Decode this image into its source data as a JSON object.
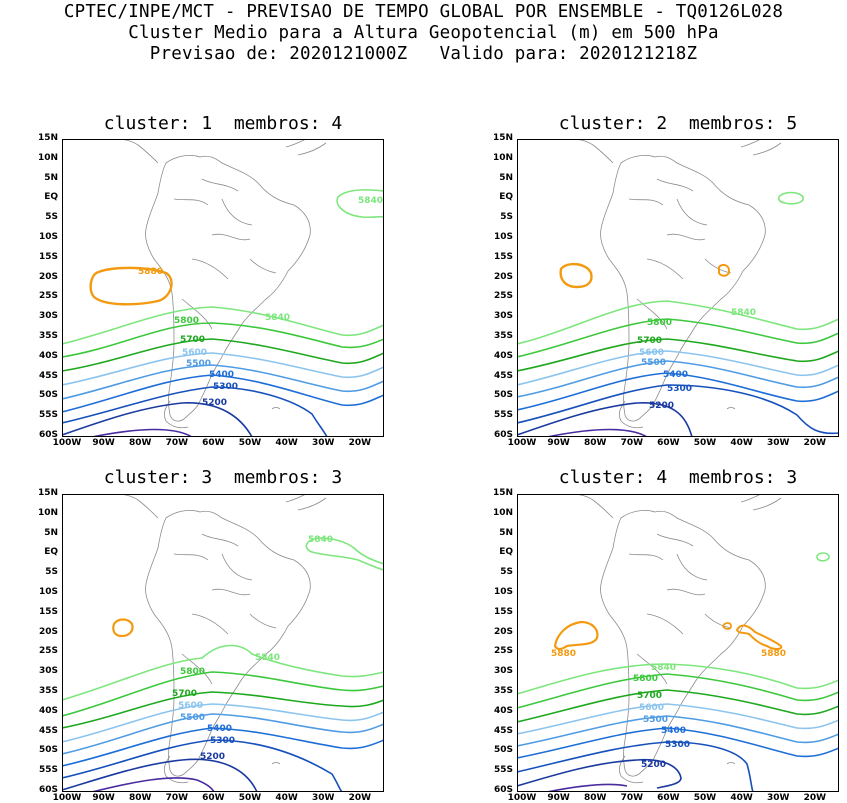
{
  "header": {
    "line1": "CPTEC/INPE/MCT - PREVISAO DE TEMPO GLOBAL POR ENSEMBLE - TQ0126L028",
    "line2": "Cluster Medio para a Altura Geopotencial (m) em 500 hPa",
    "line3": "Previsao de: 2020121000Z   Valido para: 2020121218Z"
  },
  "lat_labels": [
    "15N",
    "10N",
    "5N",
    "EQ",
    "5S",
    "10S",
    "15S",
    "20S",
    "25S",
    "30S",
    "35S",
    "40S",
    "45S",
    "50S",
    "55S",
    "60S"
  ],
  "lon_labels": [
    "100W",
    "90W",
    "80W",
    "70W",
    "60W",
    "50W",
    "40W",
    "30W",
    "20W"
  ],
  "colors": {
    "c5880": "#f39a10",
    "c5840": "#7de67d",
    "c5800": "#3cc83c",
    "c5700": "#1ea81e",
    "c5600": "#8cc4ee",
    "c5500": "#4f9be4",
    "c5400": "#1e6ed8",
    "c5300": "#1650bc",
    "c5200": "#1a3aa0",
    "c5100": "#4a2aa0",
    "land": "#8c8c8c"
  },
  "panels": [
    {
      "title": "cluster: 1  membros: 4",
      "labels": {
        "l5880": "5880",
        "l5840a": "5840",
        "l5840b": "5840",
        "l5800": "5800",
        "l5700": "5700",
        "l5600": "5600",
        "l5500": "5500",
        "l5400": "5400",
        "l5300": "5300",
        "l5200": "5200"
      }
    },
    {
      "title": "cluster: 2  membros: 5",
      "labels": {
        "l5840b": "5840",
        "l5800": "5800",
        "l5700": "5700",
        "l5600": "5600",
        "l5500": "5500",
        "l5400": "5400",
        "l5300": "5300",
        "l5200": "5200"
      }
    },
    {
      "title": "cluster: 3  membros: 3",
      "labels": {
        "l5840a": "5840",
        "l5840b": "5840",
        "l5800": "5800",
        "l5700": "5700",
        "l5600": "5600",
        "l5500": "5500",
        "l5400": "5400",
        "l5300": "5300",
        "l5200": "5200"
      }
    },
    {
      "title": "cluster: 4  membros: 3",
      "labels": {
        "l5880a": "5880",
        "l5880b": "5880",
        "l5840": "5840",
        "l5800": "5800",
        "l5700": "5700",
        "l5600": "5600",
        "l5500": "5500",
        "l5400": "5400",
        "l5300": "5300",
        "l5200": "5200"
      }
    }
  ]
}
